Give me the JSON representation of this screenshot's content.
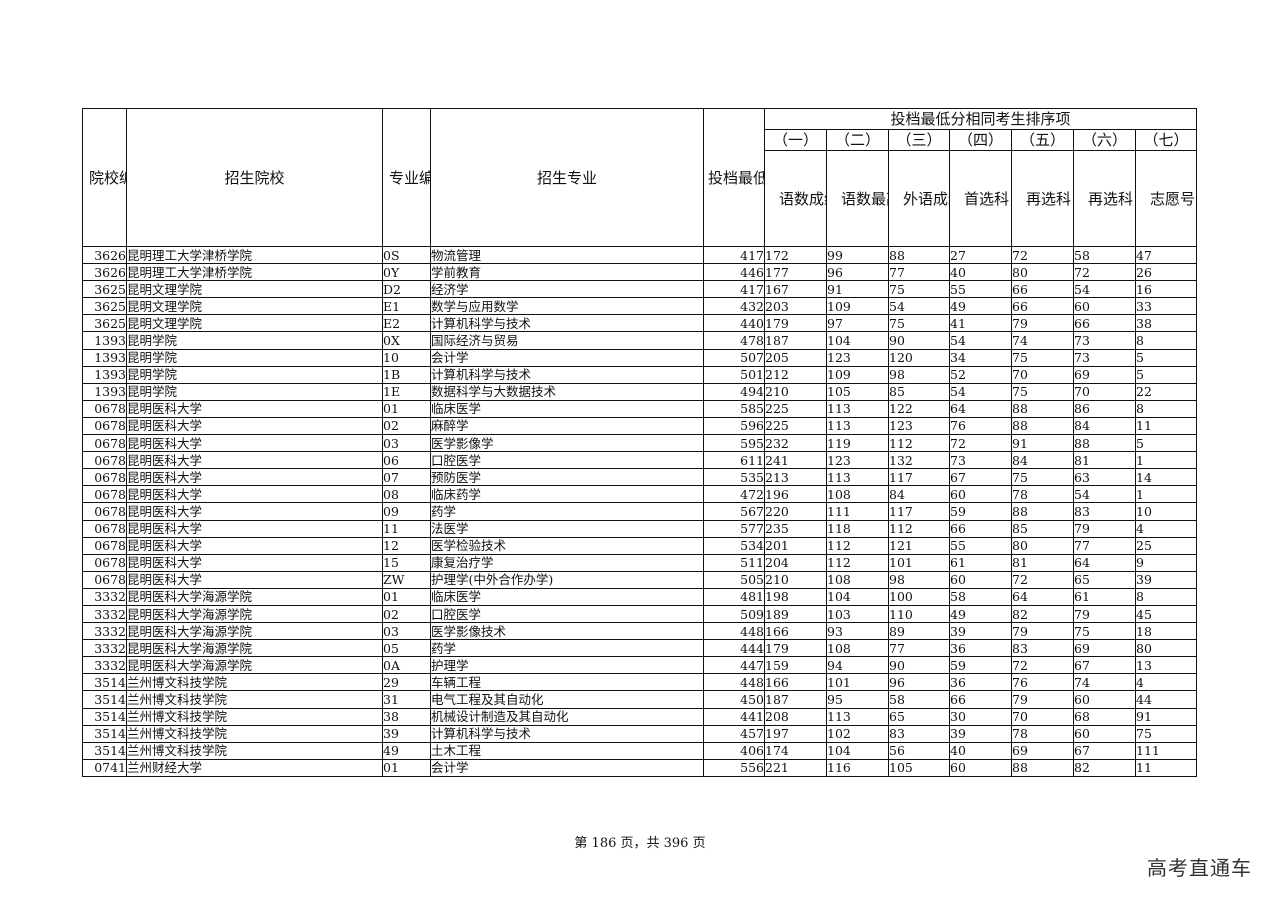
{
  "header": {
    "school_code": "院校编号",
    "school_name": "招生院校",
    "major_code": "专业编号",
    "major_name": "招生专业",
    "min_score": "投档最低分",
    "tiebreak_group": "投档最低分相同考生排序项",
    "tiebreak_items": [
      {
        "num": "（一）",
        "label": "语数成绩"
      },
      {
        "num": "（二）",
        "label": "语数最高成绩"
      },
      {
        "num": "（三）",
        "label": "外语成绩"
      },
      {
        "num": "（四）",
        "label": "首选科目成绩"
      },
      {
        "num": "（五）",
        "label": "再选科目最高成绩"
      },
      {
        "num": "（六）",
        "label": "再选科目次高成绩"
      },
      {
        "num": "（七）",
        "label": "志愿号"
      }
    ]
  },
  "rows": [
    [
      "3626",
      "昆明理工大学津桥学院",
      "0S",
      "物流管理",
      "417",
      "172",
      "99",
      "88",
      "27",
      "72",
      "58",
      "47"
    ],
    [
      "3626",
      "昆明理工大学津桥学院",
      "0Y",
      "学前教育",
      "446",
      "177",
      "96",
      "77",
      "40",
      "80",
      "72",
      "26"
    ],
    [
      "3625",
      "昆明文理学院",
      "D2",
      "经济学",
      "417",
      "167",
      "91",
      "75",
      "55",
      "66",
      "54",
      "16"
    ],
    [
      "3625",
      "昆明文理学院",
      "E1",
      "数学与应用数学",
      "432",
      "203",
      "109",
      "54",
      "49",
      "66",
      "60",
      "33"
    ],
    [
      "3625",
      "昆明文理学院",
      "E2",
      "计算机科学与技术",
      "440",
      "179",
      "97",
      "75",
      "41",
      "79",
      "66",
      "38"
    ],
    [
      "1393",
      "昆明学院",
      "0X",
      "国际经济与贸易",
      "478",
      "187",
      "104",
      "90",
      "54",
      "74",
      "73",
      "8"
    ],
    [
      "1393",
      "昆明学院",
      "10",
      "会计学",
      "507",
      "205",
      "123",
      "120",
      "34",
      "75",
      "73",
      "5"
    ],
    [
      "1393",
      "昆明学院",
      "1B",
      "计算机科学与技术",
      "501",
      "212",
      "109",
      "98",
      "52",
      "70",
      "69",
      "5"
    ],
    [
      "1393",
      "昆明学院",
      "1E",
      "数据科学与大数据技术",
      "494",
      "210",
      "105",
      "85",
      "54",
      "75",
      "70",
      "22"
    ],
    [
      "0678",
      "昆明医科大学",
      "01",
      "临床医学",
      "585",
      "225",
      "113",
      "122",
      "64",
      "88",
      "86",
      "8"
    ],
    [
      "0678",
      "昆明医科大学",
      "02",
      "麻醉学",
      "596",
      "225",
      "113",
      "123",
      "76",
      "88",
      "84",
      "11"
    ],
    [
      "0678",
      "昆明医科大学",
      "03",
      "医学影像学",
      "595",
      "232",
      "119",
      "112",
      "72",
      "91",
      "88",
      "5"
    ],
    [
      "0678",
      "昆明医科大学",
      "06",
      "口腔医学",
      "611",
      "241",
      "123",
      "132",
      "73",
      "84",
      "81",
      "1"
    ],
    [
      "0678",
      "昆明医科大学",
      "07",
      "预防医学",
      "535",
      "213",
      "113",
      "117",
      "67",
      "75",
      "63",
      "14"
    ],
    [
      "0678",
      "昆明医科大学",
      "08",
      "临床药学",
      "472",
      "196",
      "108",
      "84",
      "60",
      "78",
      "54",
      "1"
    ],
    [
      "0678",
      "昆明医科大学",
      "09",
      "药学",
      "567",
      "220",
      "111",
      "117",
      "59",
      "88",
      "83",
      "10"
    ],
    [
      "0678",
      "昆明医科大学",
      "11",
      "法医学",
      "577",
      "235",
      "118",
      "112",
      "66",
      "85",
      "79",
      "4"
    ],
    [
      "0678",
      "昆明医科大学",
      "12",
      "医学检验技术",
      "534",
      "201",
      "112",
      "121",
      "55",
      "80",
      "77",
      "25"
    ],
    [
      "0678",
      "昆明医科大学",
      "15",
      "康复治疗学",
      "511",
      "204",
      "112",
      "101",
      "61",
      "81",
      "64",
      "9"
    ],
    [
      "0678",
      "昆明医科大学",
      "ZW",
      "护理学(中外合作办学)",
      "505",
      "210",
      "108",
      "98",
      "60",
      "72",
      "65",
      "39"
    ],
    [
      "3332",
      "昆明医科大学海源学院",
      "01",
      "临床医学",
      "481",
      "198",
      "104",
      "100",
      "58",
      "64",
      "61",
      "8"
    ],
    [
      "3332",
      "昆明医科大学海源学院",
      "02",
      "口腔医学",
      "509",
      "189",
      "103",
      "110",
      "49",
      "82",
      "79",
      "45"
    ],
    [
      "3332",
      "昆明医科大学海源学院",
      "03",
      "医学影像技术",
      "448",
      "166",
      "93",
      "89",
      "39",
      "79",
      "75",
      "18"
    ],
    [
      "3332",
      "昆明医科大学海源学院",
      "05",
      "药学",
      "444",
      "179",
      "108",
      "77",
      "36",
      "83",
      "69",
      "80"
    ],
    [
      "3332",
      "昆明医科大学海源学院",
      "0A",
      "护理学",
      "447",
      "159",
      "94",
      "90",
      "59",
      "72",
      "67",
      "13"
    ],
    [
      "3514",
      "兰州博文科技学院",
      "29",
      "车辆工程",
      "448",
      "166",
      "101",
      "96",
      "36",
      "76",
      "74",
      "4"
    ],
    [
      "3514",
      "兰州博文科技学院",
      "31",
      "电气工程及其自动化",
      "450",
      "187",
      "95",
      "58",
      "66",
      "79",
      "60",
      "44"
    ],
    [
      "3514",
      "兰州博文科技学院",
      "38",
      "机械设计制造及其自动化",
      "441",
      "208",
      "113",
      "65",
      "30",
      "70",
      "68",
      "91"
    ],
    [
      "3514",
      "兰州博文科技学院",
      "39",
      "计算机科学与技术",
      "457",
      "197",
      "102",
      "83",
      "39",
      "78",
      "60",
      "75"
    ],
    [
      "3514",
      "兰州博文科技学院",
      "49",
      "土木工程",
      "406",
      "174",
      "104",
      "56",
      "40",
      "69",
      "67",
      "111"
    ],
    [
      "0741",
      "兰州财经大学",
      "01",
      "会计学",
      "556",
      "221",
      "116",
      "105",
      "60",
      "88",
      "82",
      "11"
    ]
  ],
  "footer": {
    "page_text": "第 186 页，共 396 页"
  },
  "watermark": "高考直通车"
}
